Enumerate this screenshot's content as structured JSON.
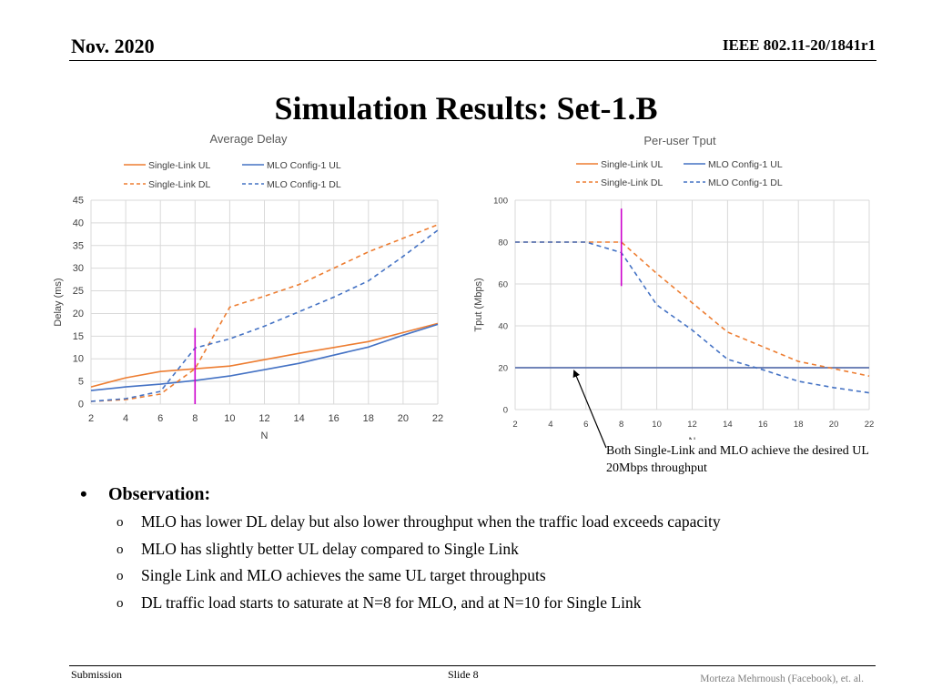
{
  "header": {
    "date": "Nov. 2020",
    "doc_id": "IEEE 802.11-20/1841r1"
  },
  "slide_title": "Simulation Results: Set-1.B",
  "chart_data": [
    {
      "type": "line",
      "title": "Average Delay",
      "xlabel": "N",
      "ylabel": "Delay (ms)",
      "x": [
        2,
        4,
        6,
        8,
        10,
        12,
        14,
        16,
        18,
        20,
        22
      ],
      "xticks": [
        2,
        4,
        6,
        8,
        10,
        12,
        14,
        16,
        18,
        20,
        22
      ],
      "yticks": [
        0,
        5,
        10,
        15,
        20,
        25,
        30,
        35,
        40,
        45
      ],
      "xlim": [
        2,
        22
      ],
      "ylim": [
        0,
        45
      ],
      "grid": true,
      "legend_position": "top",
      "series": [
        {
          "name": "Single-Link UL",
          "color": "#ED7D31",
          "dash": false,
          "values": [
            3.8,
            5.8,
            7.2,
            7.8,
            8.4,
            9.8,
            11.2,
            12.5,
            13.8,
            15.8,
            17.8
          ]
        },
        {
          "name": "MLO Config-1 UL",
          "color": "#4472C4",
          "dash": false,
          "values": [
            3.0,
            3.8,
            4.4,
            5.2,
            6.2,
            7.6,
            9.0,
            10.8,
            12.6,
            15.2,
            17.6
          ]
        },
        {
          "name": "Single-Link DL",
          "color": "#ED7D31",
          "dash": true,
          "values": [
            0.6,
            1.0,
            2.2,
            7.8,
            21.4,
            23.8,
            26.4,
            30.0,
            33.6,
            36.6,
            39.6
          ]
        },
        {
          "name": "MLO Config-1 DL",
          "color": "#4472C4",
          "dash": true,
          "values": [
            0.6,
            1.2,
            2.8,
            12.4,
            14.4,
            17.2,
            20.4,
            23.6,
            27.2,
            32.6,
            38.4
          ]
        }
      ],
      "marker": {
        "x": 8,
        "y_from": 0,
        "y_to": 16.8,
        "color": "#CC00CC"
      }
    },
    {
      "type": "line",
      "title": "Per-user Tput",
      "xlabel": "N",
      "ylabel": "Tput (Mbps)",
      "x": [
        2,
        4,
        6,
        8,
        10,
        12,
        14,
        16,
        18,
        20,
        22
      ],
      "xticks": [
        2,
        4,
        6,
        8,
        10,
        12,
        14,
        16,
        18,
        20,
        22
      ],
      "yticks": [
        0,
        20,
        40,
        60,
        80,
        100
      ],
      "xlim": [
        2,
        22
      ],
      "ylim": [
        0,
        100
      ],
      "grid": true,
      "legend_position": "top",
      "series": [
        {
          "name": "Single-Link UL",
          "color": "#ED7D31",
          "dash": false,
          "values": [
            20,
            20,
            20,
            20,
            20,
            20,
            20,
            20,
            20,
            20,
            20
          ]
        },
        {
          "name": "MLO Config-1 UL",
          "color": "#4472C4",
          "dash": false,
          "values": [
            20,
            20,
            20,
            20,
            20,
            20,
            20,
            20,
            20,
            20,
            20
          ]
        },
        {
          "name": "Single-Link DL",
          "color": "#ED7D31",
          "dash": true,
          "values": [
            80,
            80,
            80,
            80,
            65,
            51,
            37,
            30,
            23,
            19.5,
            16
          ]
        },
        {
          "name": "MLO Config-1 DL",
          "color": "#4472C4",
          "dash": true,
          "values": [
            80,
            80,
            80,
            75,
            50,
            38,
            24,
            19,
            13.5,
            10.5,
            8
          ]
        }
      ],
      "marker": {
        "x": 8,
        "y_from": 59,
        "y_to": 96,
        "color": "#CC00CC"
      }
    }
  ],
  "annotation": {
    "text": "Both Single-Link and MLO achieve the desired UL 20Mbps throughput"
  },
  "observation": {
    "heading": "Observation:",
    "bullet": "•",
    "sub_bullet": "o",
    "items": [
      "MLO has lower DL delay but also lower throughput when the traffic load exceeds capacity",
      "MLO has slightly better UL delay compared to Single Link",
      "Single Link and MLO achieves the same UL target throughputs",
      "DL traffic load starts to saturate at N=8 for MLO, and at N=10 for Single Link"
    ]
  },
  "footer": {
    "left": "Submission",
    "center": "Slide 8",
    "right": "Morteza Mehrnoush (Facebook), et. al."
  }
}
